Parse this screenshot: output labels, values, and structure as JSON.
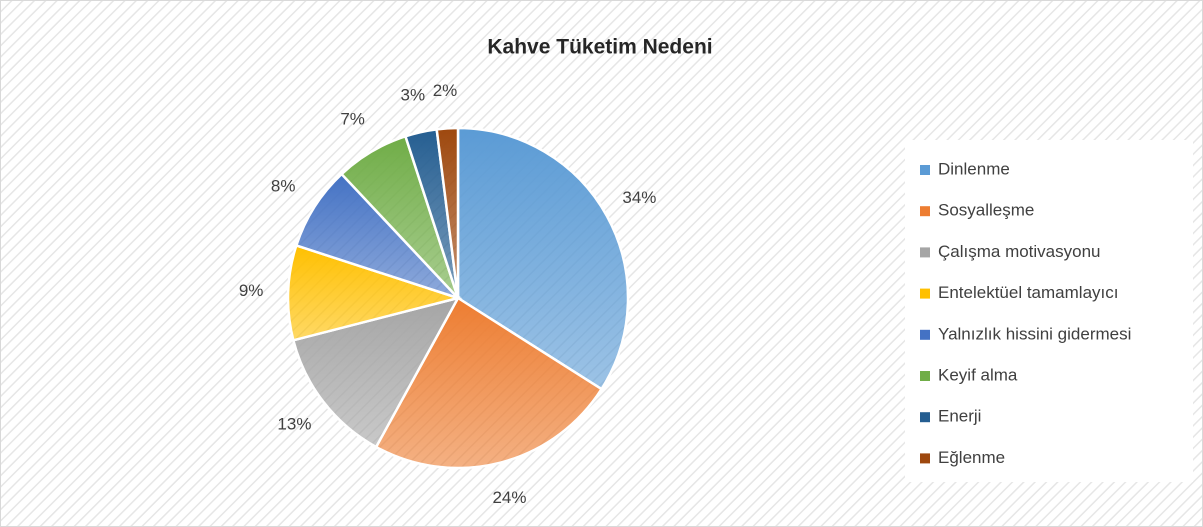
{
  "chart_data": {
    "type": "pie",
    "title": "Kahve Tüketim Nedeni",
    "categories": [
      "Dinlenme",
      "Sosyalleşme",
      "Çalışma motivasyonu",
      "Entelektüel tamamlayıcı",
      "Yalnızlık hissini gidermesi",
      "Keyif alma",
      "Enerji",
      "Eğlenme"
    ],
    "values": [
      34,
      24,
      13,
      9,
      8,
      7,
      3,
      2
    ],
    "value_labels": [
      "34%",
      "24%",
      "13%",
      "9%",
      "8%",
      "7%",
      "3%",
      "2%"
    ],
    "colors": [
      "#5b9bd5",
      "#ed7d31",
      "#a5a5a5",
      "#ffc000",
      "#4472c4",
      "#70ad47",
      "#255e91",
      "#9e480e"
    ],
    "legend": "right"
  }
}
